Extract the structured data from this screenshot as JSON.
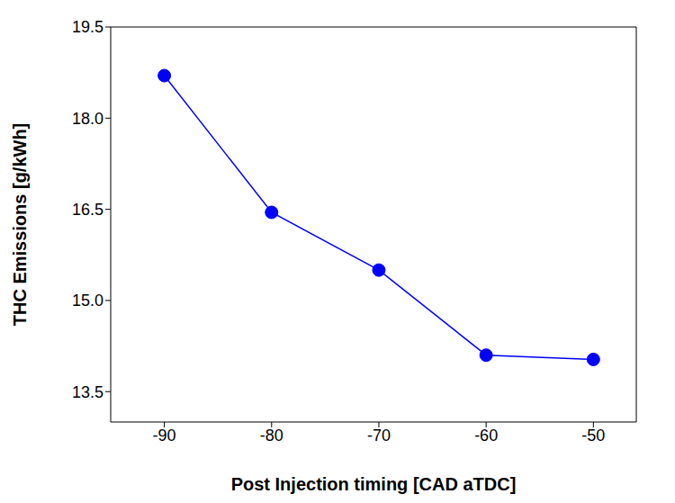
{
  "chart_data": {
    "type": "line",
    "x_label": "Post Injection timing [CAD aTDC]",
    "y_label": "THC Emissions [g/kWh]",
    "x": [
      -90,
      -80,
      -70,
      -60,
      -50
    ],
    "values": [
      18.7,
      16.45,
      15.5,
      14.1,
      14.03
    ],
    "color": "#0000ff",
    "marker": "circle",
    "xlim": [
      -95,
      -46
    ],
    "ylim": [
      13.0,
      19.5
    ],
    "xticks": [
      -90,
      -80,
      -70,
      -60,
      -50
    ],
    "yticks": [
      13.5,
      {
        "value": 15,
        "label": "15.0"
      },
      16.5,
      {
        "value": 18,
        "label": "18.0"
      },
      19.5
    ],
    "grid": false
  }
}
